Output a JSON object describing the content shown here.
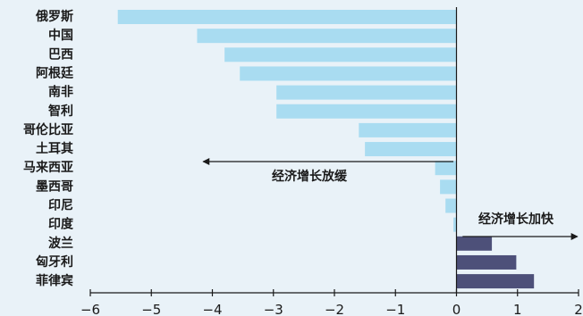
{
  "chart_data": {
    "type": "bar",
    "orientation": "horizontal",
    "title": "",
    "xlabel": "",
    "ylabel": "",
    "categories": [
      "俄罗斯",
      "中国",
      "巴西",
      "阿根廷",
      "南非",
      "智利",
      "哥伦比亚",
      "土耳其",
      "马来西亚",
      "墨西哥",
      "印尼",
      "印度",
      "波兰",
      "匈牙利",
      "菲律宾"
    ],
    "values": [
      -5.55,
      -4.25,
      -3.8,
      -3.55,
      -2.95,
      -2.95,
      -1.6,
      -1.5,
      -0.35,
      -0.27,
      -0.18,
      -0.05,
      0.58,
      0.98,
      1.27
    ],
    "xlim": [
      -6,
      2
    ],
    "xticks": [
      -6,
      -5,
      -4,
      -3,
      -2,
      -1,
      0,
      1,
      2
    ],
    "xtick_labels": [
      "−6",
      "−5",
      "−4",
      "−3",
      "−2",
      "−1",
      "0",
      "1",
      "2"
    ],
    "grid": false,
    "colors": {
      "negative": "#a9dcf1",
      "positive": "#4d5079",
      "axis": "#1a1a1a",
      "background": "#e9f2f8"
    },
    "annotations": [
      {
        "text": "经济增长放缓",
        "direction": "left",
        "arrow_x": [
          -0.05,
          -4.15
        ]
      },
      {
        "text": "经济增长加快",
        "direction": "right",
        "arrow_x": [
          0.1,
          1.98
        ]
      }
    ]
  }
}
